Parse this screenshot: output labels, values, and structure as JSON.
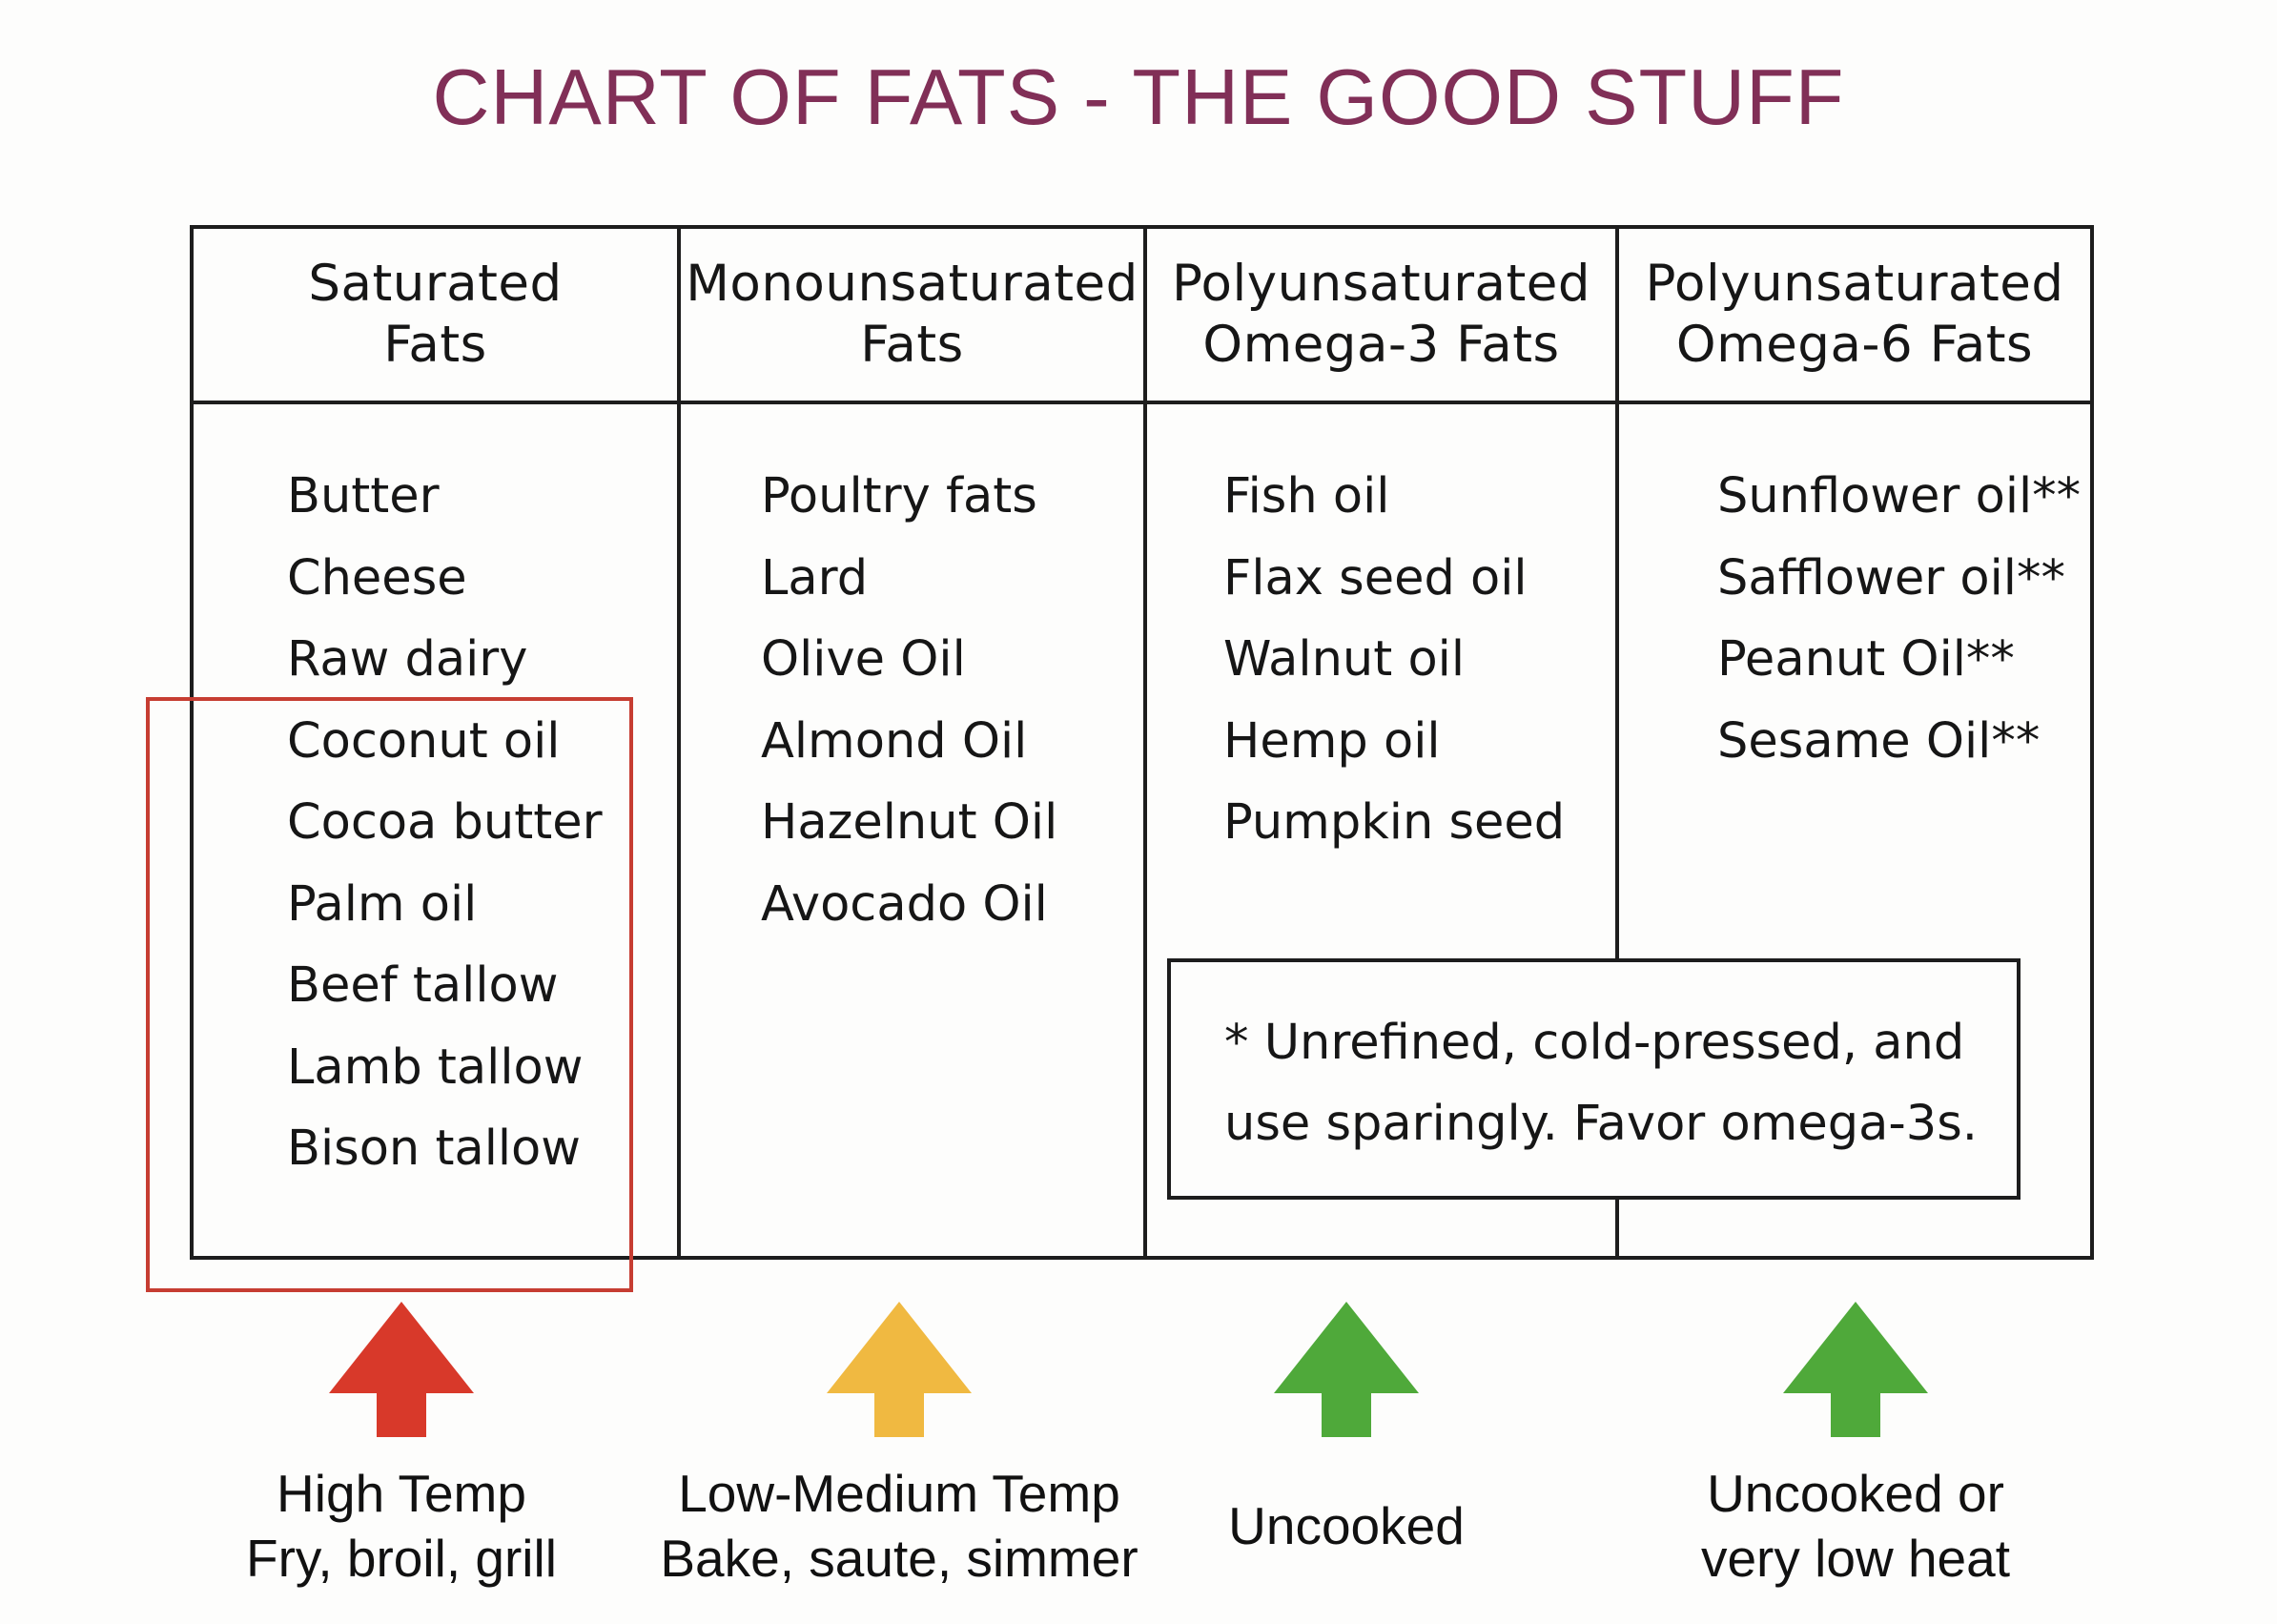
{
  "title": "CHART OF FATS - THE GOOD STUFF",
  "colors": {
    "title": "#812f57",
    "highlight": "#c63d32",
    "arrow_high": "#d8392a",
    "arrow_low_medium": "#f0b941",
    "arrow_uncooked": "#4fa93a",
    "arrow_low_heat": "#4fa93a"
  },
  "columns": [
    {
      "header": [
        "Saturated",
        "Fats"
      ],
      "items": [
        "Butter",
        "Cheese",
        "Raw dairy",
        "Coconut oil",
        "Cocoa butter",
        "Palm oil",
        "Beef tallow",
        "Lamb tallow",
        "Bison tallow"
      ],
      "arrow_icon": "arrow-up-red-icon",
      "caption": [
        "High Temp",
        "Fry, broil, grill"
      ]
    },
    {
      "header": [
        "Monounsaturated",
        "Fats"
      ],
      "items": [
        "Poultry fats",
        "Lard",
        "Olive Oil",
        "Almond Oil",
        "Hazelnut Oil",
        "Avocado Oil"
      ],
      "arrow_icon": "arrow-up-yellow-icon",
      "caption": [
        "Low-Medium Temp",
        "Bake, saute, simmer"
      ]
    },
    {
      "header": [
        "Polyunsaturated",
        "Omega-3 Fats"
      ],
      "items": [
        "Fish oil",
        "Flax seed oil",
        "Walnut oil",
        "Hemp oil",
        "Pumpkin seed"
      ],
      "arrow_icon": "arrow-up-green-icon",
      "caption": [
        "Uncooked"
      ]
    },
    {
      "header": [
        "Polyunsaturated",
        "Omega-6 Fats"
      ],
      "items": [
        "Sunflower oil**",
        "Safflower oil**",
        "Peanut Oil**",
        "Sesame Oil**"
      ],
      "arrow_icon": "arrow-up-green-icon",
      "caption": [
        "Uncooked or",
        "very low heat"
      ]
    }
  ],
  "note": [
    "* Unrefined, cold-pressed, and",
    "use sparingly. Favor omega-3s."
  ]
}
